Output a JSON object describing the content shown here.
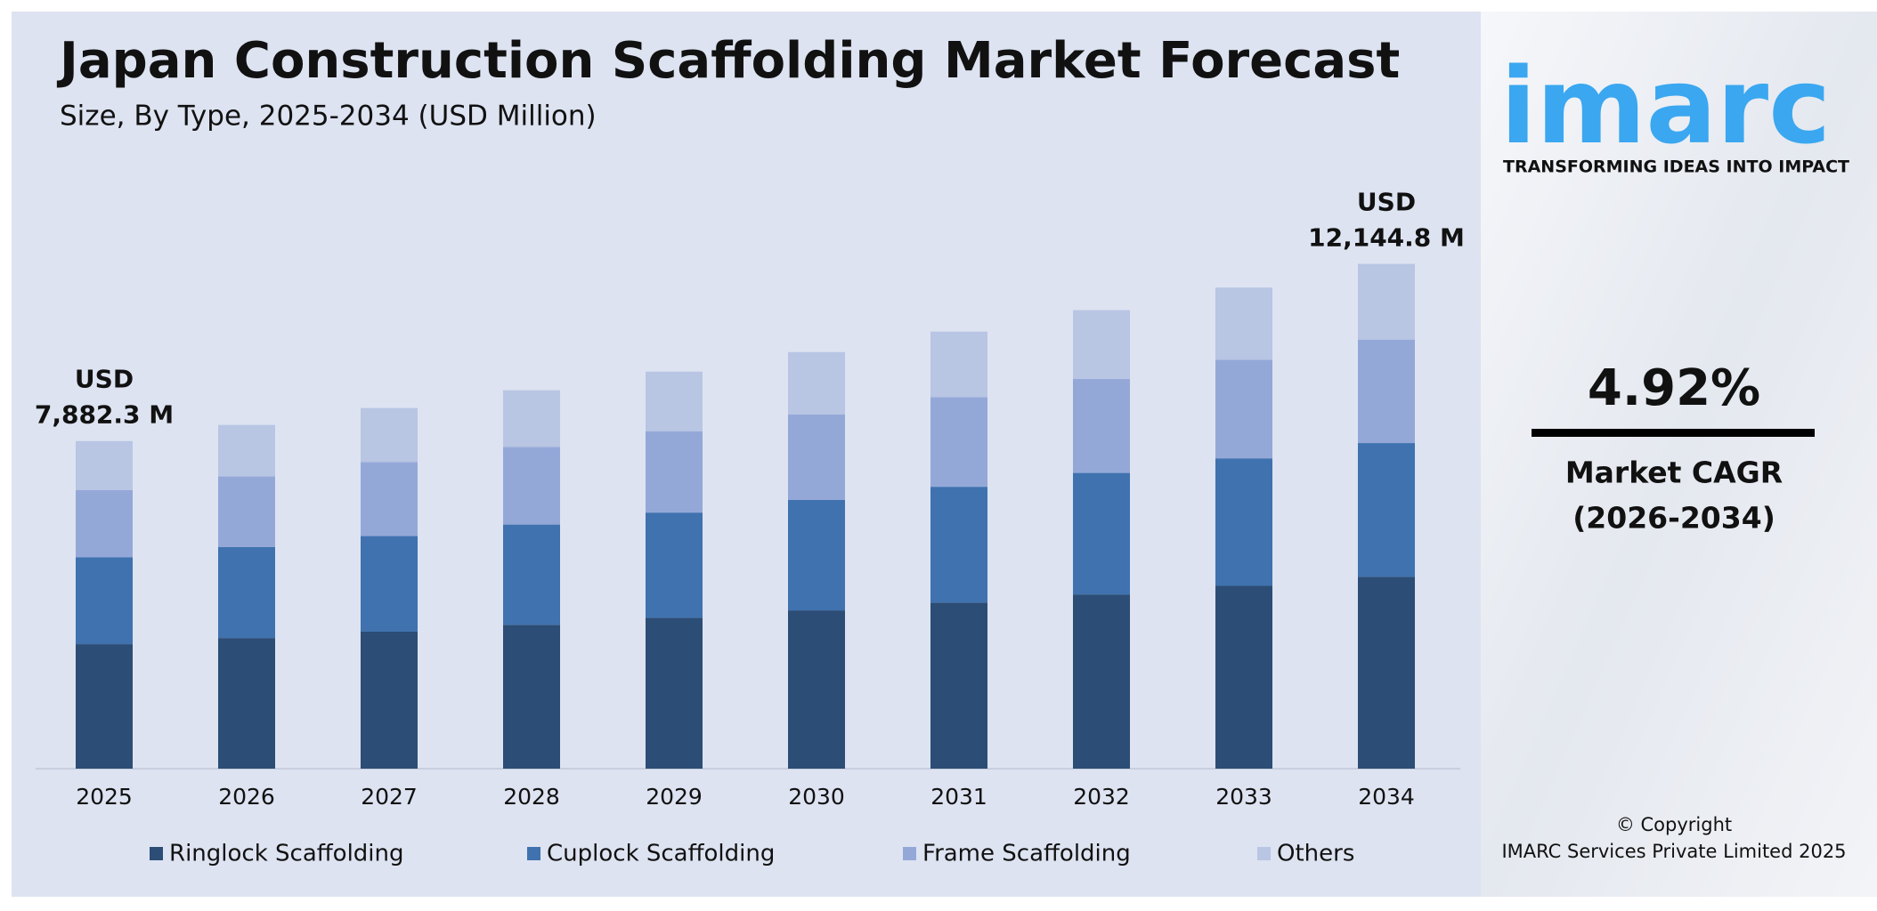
{
  "chart_data": {
    "type": "stacked-bar",
    "title": "Japan Construction Scaffolding Market Forecast",
    "subtitle": "Size, By Type, 2025-2034 (USD Million)",
    "categories": [
      "2025",
      "2026",
      "2027",
      "2028",
      "2029",
      "2030",
      "2031",
      "2032",
      "2033",
      "2034"
    ],
    "series": [
      {
        "name": "Ringlock Scaffolding",
        "color": "#2c4d75",
        "values": [
          2995,
          3143,
          3297,
          3460,
          3630,
          3808,
          3996,
          4192,
          4399,
          4615
        ]
      },
      {
        "name": "Cuplock Scaffolding",
        "color": "#3f72af",
        "values": [
          2089,
          2192,
          2299,
          2413,
          2531,
          2656,
          2786,
          2923,
          3067,
          3218
        ]
      },
      {
        "name": "Frame Scaffolding",
        "color": "#94a8d8",
        "values": [
          1616,
          1695,
          1779,
          1866,
          1958,
          2055,
          2156,
          2262,
          2373,
          2490
        ]
      },
      {
        "name": "Others",
        "color": "#b8c5e3",
        "values": [
          1182,
          1240,
          1302,
          1365,
          1433,
          1503,
          1577,
          1655,
          1736,
          1822
        ]
      }
    ],
    "totals": [
      7882.3,
      null,
      null,
      null,
      null,
      null,
      null,
      null,
      null,
      12144.8
    ],
    "total_labels": [
      [
        "USD",
        "7,882.3 M"
      ],
      null,
      null,
      null,
      null,
      null,
      null,
      null,
      null,
      [
        "USD",
        "12,144.8 M"
      ]
    ],
    "ylim": [
      0,
      12500
    ],
    "legend": "bottom"
  },
  "side_panel": {
    "logo": "imarc",
    "tagline": "TRANSFORMING IDEAS INTO IMPACT",
    "cagr": "4.92%",
    "cagr_label": "Market CAGR",
    "cagr_period": "(2026-2034)",
    "copyright": "© Copyright",
    "company": "IMARC Services Private Limited 2025"
  }
}
